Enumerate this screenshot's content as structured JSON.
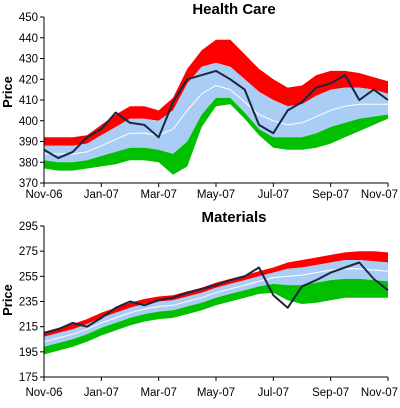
{
  "chart_data": [
    {
      "type": "area",
      "title": "Health Care",
      "ylabel": "Price",
      "xlabel": "",
      "ylim": [
        370,
        450
      ],
      "yticks": [
        "370",
        "380",
        "390",
        "400",
        "410",
        "420",
        "430",
        "440",
        "450"
      ],
      "xticks": [
        "Nov-06",
        "Jan-07",
        "Mar-07",
        "May-07",
        "Jul-07",
        "Sep-07",
        "Nov-07"
      ],
      "x_positions": [
        0,
        2,
        4,
        6,
        8,
        10,
        12
      ],
      "grid": false,
      "legend": "none",
      "colors": {
        "outer": "#ff0000",
        "inner": "#aacdf5",
        "mid": "#ffffff",
        "lower": "#00c000",
        "price": "#1a2740"
      },
      "x": [
        0,
        0.5,
        1,
        1.5,
        2,
        2.5,
        3,
        3.5,
        4,
        4.5,
        5,
        5.5,
        6,
        6.5,
        7,
        7.5,
        8,
        8.5,
        9,
        9.5,
        10,
        10.5,
        11,
        11.5,
        12
      ],
      "series": [
        {
          "role": "outer_upper",
          "values": [
            392,
            392,
            392,
            393,
            398,
            403,
            407,
            407,
            405,
            411,
            425,
            434,
            439,
            439,
            432,
            425,
            420,
            416,
            417,
            422,
            424,
            424,
            423,
            421,
            419
          ]
        },
        {
          "role": "inner_upper",
          "values": [
            388,
            388,
            388,
            389,
            393,
            397,
            401,
            401,
            400,
            405,
            418,
            426,
            428,
            426,
            420,
            414,
            410,
            407,
            408,
            412,
            415,
            416,
            416,
            415,
            413
          ]
        },
        {
          "role": "middle",
          "values": [
            384,
            384,
            384,
            385,
            388,
            391,
            394,
            394,
            393,
            396,
            405,
            413,
            417,
            415,
            409,
            403,
            400,
            398,
            399,
            402,
            405,
            407,
            408,
            408,
            408
          ]
        },
        {
          "role": "inner_lower",
          "values": [
            381,
            380,
            380,
            381,
            383,
            385,
            387,
            387,
            386,
            384,
            390,
            403,
            411,
            411,
            404,
            396,
            392,
            392,
            392,
            394,
            397,
            399,
            401,
            402,
            403
          ]
        },
        {
          "role": "outer_lower",
          "values": [
            377,
            376,
            376,
            377,
            378,
            379,
            381,
            381,
            380,
            374,
            378,
            397,
            407,
            408,
            401,
            393,
            387,
            386,
            386,
            387,
            389,
            392,
            395,
            398,
            401
          ]
        },
        {
          "role": "price",
          "values": [
            386,
            382,
            385,
            392,
            396,
            404,
            399,
            398,
            392,
            409,
            420,
            422,
            424,
            420,
            415,
            398,
            394,
            405,
            409,
            416,
            418,
            422,
            410,
            415,
            410
          ]
        }
      ]
    },
    {
      "type": "area",
      "title": "Materials",
      "ylabel": "Price",
      "xlabel": "",
      "ylim": [
        175,
        295
      ],
      "yticks": [
        "175",
        "195",
        "215",
        "235",
        "255",
        "275",
        "295"
      ],
      "xticks": [
        "Nov-06",
        "Jan-07",
        "Mar-07",
        "May-07",
        "Jul-07",
        "Sep-07",
        "Nov-07"
      ],
      "x_positions": [
        0,
        2,
        4,
        6,
        8,
        10,
        12
      ],
      "grid": false,
      "legend": "none",
      "colors": {
        "outer": "#ff0000",
        "inner": "#aacdf5",
        "mid": "#ffffff",
        "lower": "#00c000",
        "price": "#1a2740"
      },
      "x": [
        0,
        0.5,
        1,
        1.5,
        2,
        2.5,
        3,
        3.5,
        4,
        4.5,
        5,
        5.5,
        6,
        6.5,
        7,
        7.5,
        8,
        8.5,
        9,
        9.5,
        10,
        10.5,
        11,
        11.5,
        12
      ],
      "series": [
        {
          "role": "outer_upper",
          "values": [
            211,
            214,
            217,
            221,
            226,
            230,
            234,
            237,
            239,
            240,
            243,
            246,
            250,
            253,
            256,
            259,
            262,
            266,
            268,
            270,
            272,
            274,
            275,
            275,
            274
          ]
        },
        {
          "role": "inner_upper",
          "values": [
            207,
            210,
            213,
            217,
            222,
            226,
            230,
            233,
            235,
            236,
            239,
            242,
            246,
            249,
            252,
            255,
            258,
            261,
            262,
            264,
            266,
            268,
            268,
            267,
            266
          ]
        },
        {
          "role": "middle",
          "values": [
            203,
            206,
            209,
            213,
            218,
            222,
            226,
            229,
            231,
            232,
            235,
            238,
            242,
            245,
            248,
            251,
            254,
            255,
            256,
            258,
            260,
            261,
            261,
            260,
            259
          ]
        },
        {
          "role": "inner_lower",
          "values": [
            199,
            202,
            205,
            209,
            214,
            218,
            222,
            225,
            227,
            228,
            231,
            234,
            238,
            241,
            244,
            247,
            249,
            248,
            248,
            250,
            252,
            253,
            253,
            252,
            251
          ]
        },
        {
          "role": "outer_lower",
          "values": [
            193,
            196,
            199,
            203,
            208,
            212,
            216,
            219,
            221,
            222,
            225,
            228,
            232,
            235,
            238,
            241,
            242,
            236,
            233,
            234,
            236,
            238,
            238,
            238,
            238
          ]
        },
        {
          "role": "price",
          "values": [
            210,
            213,
            218,
            215,
            222,
            230,
            235,
            232,
            236,
            238,
            242,
            245,
            248,
            252,
            255,
            262,
            240,
            230,
            247,
            252,
            258,
            262,
            266,
            253,
            244
          ]
        }
      ]
    }
  ]
}
